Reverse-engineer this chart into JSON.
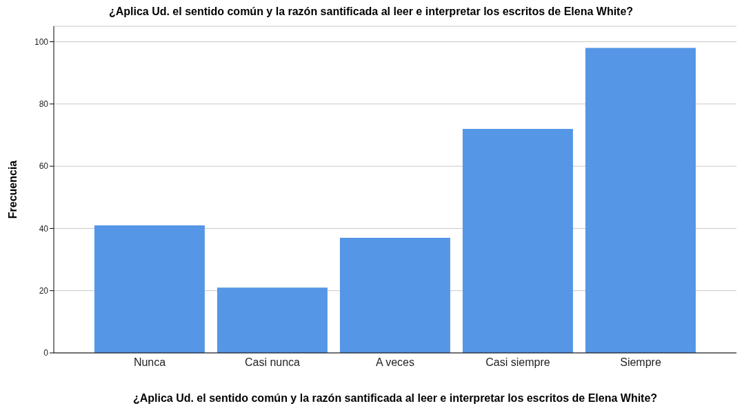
{
  "chart_data": {
    "type": "bar",
    "title": "¿Aplica Ud. el sentido común y la razón santificada al leer e interpretar los escritos de Elena White?",
    "xlabel": "¿Aplica Ud. el sentido común y la razón santificada al leer e interpretar los escritos de Elena White?",
    "ylabel": "Frecuencia",
    "categories": [
      "Nunca",
      "Casi nunca",
      "A veces",
      "Casi siempre",
      "Siempre"
    ],
    "values": [
      41,
      21,
      37,
      72,
      98
    ],
    "color": "#5596e6",
    "ylim": [
      0,
      105
    ],
    "yticks": [
      0,
      20,
      40,
      60,
      80,
      100
    ],
    "grid": "y"
  }
}
